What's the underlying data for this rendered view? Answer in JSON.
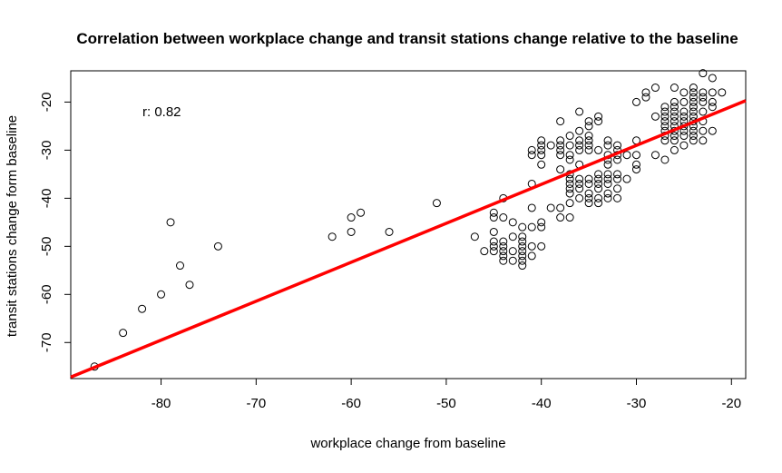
{
  "chart_data": {
    "type": "scatter",
    "title": "Correlation between workplace change and transit stations change relative to the baseline",
    "xlabel": "workplace change from baseline",
    "ylabel": "transit stations change form baseline",
    "xlim": [
      -89.5,
      -18.5
    ],
    "ylim": [
      -77.5,
      -13.5
    ],
    "xticks": [
      -80,
      -70,
      -60,
      -50,
      -40,
      -30,
      -20
    ],
    "yticks": [
      -20,
      -30,
      -40,
      -50,
      -60,
      -70
    ],
    "annotation": "r: 0.82",
    "regression_line": {
      "x": [
        -89.5,
        -18.5
      ],
      "y": [
        -77.2,
        -19.7
      ],
      "color": "#ff0000"
    },
    "point_style": "open-circle",
    "grid": false,
    "points": [
      [
        -87,
        -75
      ],
      [
        -84,
        -68
      ],
      [
        -82,
        -63
      ],
      [
        -80,
        -60
      ],
      [
        -79,
        -45
      ],
      [
        -78,
        -54
      ],
      [
        -77,
        -58
      ],
      [
        -74,
        -50
      ],
      [
        -62,
        -48
      ],
      [
        -60,
        -44
      ],
      [
        -60,
        -47
      ],
      [
        -59,
        -43
      ],
      [
        -56,
        -47
      ],
      [
        -51,
        -41
      ],
      [
        -47,
        -48
      ],
      [
        -46,
        -51
      ],
      [
        -45,
        -43
      ],
      [
        -45,
        -44
      ],
      [
        -45,
        -47
      ],
      [
        -45,
        -49
      ],
      [
        -45,
        -50
      ],
      [
        -45,
        -51
      ],
      [
        -44,
        -40
      ],
      [
        -44,
        -44
      ],
      [
        -44,
        -49
      ],
      [
        -44,
        -50
      ],
      [
        -44,
        -51
      ],
      [
        -44,
        -52
      ],
      [
        -44,
        -53
      ],
      [
        -43,
        -45
      ],
      [
        -43,
        -48
      ],
      [
        -43,
        -51
      ],
      [
        -43,
        -53
      ],
      [
        -42,
        -46
      ],
      [
        -42,
        -48
      ],
      [
        -42,
        -49
      ],
      [
        -42,
        -50
      ],
      [
        -42,
        -51
      ],
      [
        -42,
        -52
      ],
      [
        -42,
        -53
      ],
      [
        -42,
        -54
      ],
      [
        -41,
        -30
      ],
      [
        -41,
        -31
      ],
      [
        -41,
        -37
      ],
      [
        -41,
        -42
      ],
      [
        -41,
        -46
      ],
      [
        -41,
        -50
      ],
      [
        -41,
        -52
      ],
      [
        -40,
        -28
      ],
      [
        -40,
        -29
      ],
      [
        -40,
        -30
      ],
      [
        -40,
        -31
      ],
      [
        -40,
        -33
      ],
      [
        -40,
        -45
      ],
      [
        -40,
        -46
      ],
      [
        -40,
        -50
      ],
      [
        -39,
        -29
      ],
      [
        -39,
        -42
      ],
      [
        -38,
        -24
      ],
      [
        -38,
        -28
      ],
      [
        -38,
        -29
      ],
      [
        -38,
        -30
      ],
      [
        -38,
        -31
      ],
      [
        -38,
        -34
      ],
      [
        -38,
        -42
      ],
      [
        -38,
        -44
      ],
      [
        -37,
        -27
      ],
      [
        -37,
        -29
      ],
      [
        -37,
        -31
      ],
      [
        -37,
        -32
      ],
      [
        -37,
        -35
      ],
      [
        -37,
        -36
      ],
      [
        -37,
        -37
      ],
      [
        -37,
        -38
      ],
      [
        -37,
        -39
      ],
      [
        -37,
        -41
      ],
      [
        -37,
        -44
      ],
      [
        -36,
        -22
      ],
      [
        -36,
        -26
      ],
      [
        -36,
        -28
      ],
      [
        -36,
        -29
      ],
      [
        -36,
        -30
      ],
      [
        -36,
        -33
      ],
      [
        -36,
        -36
      ],
      [
        -36,
        -37
      ],
      [
        -36,
        -38
      ],
      [
        -36,
        -40
      ],
      [
        -35,
        -24
      ],
      [
        -35,
        -25
      ],
      [
        -35,
        -27
      ],
      [
        -35,
        -28
      ],
      [
        -35,
        -29
      ],
      [
        -35,
        -30
      ],
      [
        -35,
        -36
      ],
      [
        -35,
        -37
      ],
      [
        -35,
        -39
      ],
      [
        -35,
        -40
      ],
      [
        -35,
        -41
      ],
      [
        -34,
        -23
      ],
      [
        -34,
        -24
      ],
      [
        -34,
        -30
      ],
      [
        -34,
        -35
      ],
      [
        -34,
        -36
      ],
      [
        -34,
        -37
      ],
      [
        -34,
        -38
      ],
      [
        -34,
        -40
      ],
      [
        -34,
        -41
      ],
      [
        -33,
        -28
      ],
      [
        -33,
        -29
      ],
      [
        -33,
        -31
      ],
      [
        -33,
        -32
      ],
      [
        -33,
        -33
      ],
      [
        -33,
        -35
      ],
      [
        -33,
        -36
      ],
      [
        -33,
        -37
      ],
      [
        -33,
        -39
      ],
      [
        -33,
        -40
      ],
      [
        -32,
        -29
      ],
      [
        -32,
        -30
      ],
      [
        -32,
        -31
      ],
      [
        -32,
        -32
      ],
      [
        -32,
        -35
      ],
      [
        -32,
        -36
      ],
      [
        -32,
        -38
      ],
      [
        -32,
        -40
      ],
      [
        -31,
        -31
      ],
      [
        -31,
        -36
      ],
      [
        -30,
        -20
      ],
      [
        -30,
        -28
      ],
      [
        -30,
        -31
      ],
      [
        -30,
        -33
      ],
      [
        -30,
        -34
      ],
      [
        -29,
        -18
      ],
      [
        -29,
        -19
      ],
      [
        -28,
        -17
      ],
      [
        -28,
        -23
      ],
      [
        -28,
        -31
      ],
      [
        -27,
        -21
      ],
      [
        -27,
        -22
      ],
      [
        -27,
        -23
      ],
      [
        -27,
        -24
      ],
      [
        -27,
        -25
      ],
      [
        -27,
        -26
      ],
      [
        -27,
        -27
      ],
      [
        -27,
        -28
      ],
      [
        -27,
        -32
      ],
      [
        -26,
        -17
      ],
      [
        -26,
        -20
      ],
      [
        -26,
        -21
      ],
      [
        -26,
        -22
      ],
      [
        -26,
        -23
      ],
      [
        -26,
        -24
      ],
      [
        -26,
        -25
      ],
      [
        -26,
        -26
      ],
      [
        -26,
        -27
      ],
      [
        -26,
        -28
      ],
      [
        -26,
        -30
      ],
      [
        -25,
        -18
      ],
      [
        -25,
        -20
      ],
      [
        -25,
        -22
      ],
      [
        -25,
        -23
      ],
      [
        -25,
        -24
      ],
      [
        -25,
        -25
      ],
      [
        -25,
        -26
      ],
      [
        -25,
        -27
      ],
      [
        -25,
        -29
      ],
      [
        -24,
        -17
      ],
      [
        -24,
        -18
      ],
      [
        -24,
        -19
      ],
      [
        -24,
        -20
      ],
      [
        -24,
        -21
      ],
      [
        -24,
        -22
      ],
      [
        -24,
        -23
      ],
      [
        -24,
        -24
      ],
      [
        -24,
        -25
      ],
      [
        -24,
        -26
      ],
      [
        -24,
        -27
      ],
      [
        -24,
        -28
      ],
      [
        -23,
        -14
      ],
      [
        -23,
        -18
      ],
      [
        -23,
        -19
      ],
      [
        -23,
        -20
      ],
      [
        -23,
        -22
      ],
      [
        -23,
        -24
      ],
      [
        -23,
        -26
      ],
      [
        -23,
        -28
      ],
      [
        -22,
        -15
      ],
      [
        -22,
        -18
      ],
      [
        -22,
        -20
      ],
      [
        -22,
        -21
      ],
      [
        -22,
        -26
      ],
      [
        -21,
        -18
      ]
    ]
  }
}
